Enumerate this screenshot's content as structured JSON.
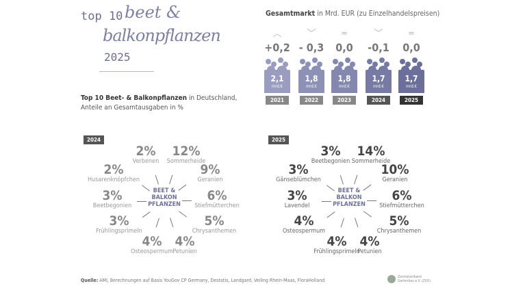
{
  "title": {
    "top": "top 10",
    "line1": "beet &",
    "line2": "balkonpflanzen",
    "year": "2025"
  },
  "subtitle": {
    "bold": "Top 10 Beet- & Balkonpflanzen",
    "rest": " in Deutschland,",
    "line2": "Anteile an Gesamtausgaben in %"
  },
  "market": {
    "title_bold": "Gesamtmarkt",
    "title_rest": " in Mrd. EUR (zu Einzelhandelspreisen)",
    "unit": "mrd.€",
    "columns": [
      {
        "year": "2021",
        "change": "+0,2",
        "trend": "up",
        "value": "2,1",
        "color": "#9a9cc0",
        "year_bg": "#888"
      },
      {
        "year": "2022",
        "change": "- 0,3",
        "trend": "down",
        "value": "1,8",
        "color": "#8e91b6",
        "year_bg": "#888"
      },
      {
        "year": "2023",
        "change": "0,0",
        "trend": "flat",
        "value": "1,8",
        "color": "#8487ae",
        "year_bg": "#888"
      },
      {
        "year": "2024",
        "change": "-0,1",
        "trend": "down",
        "value": "1,7",
        "color": "#777aa3",
        "year_bg": "#555"
      },
      {
        "year": "2025",
        "change": "0,0",
        "trend": "flat",
        "value": "1,7",
        "color": "#6c6f99",
        "year_bg": "#333"
      }
    ]
  },
  "center_label": [
    "BEET &",
    "BALKON",
    "PFLANZEN"
  ],
  "panels": [
    {
      "year": "2024",
      "items": [
        {
          "pct": "2%",
          "name": "Verbenen"
        },
        {
          "pct": "12%",
          "name": "Sommerheide"
        },
        {
          "pct": "9%",
          "name": "Geranien"
        },
        {
          "pct": "6%",
          "name": "Stiefmütterchen"
        },
        {
          "pct": "5%",
          "name": "Chrysanthemen"
        },
        {
          "pct": "4%",
          "name": "Petunien"
        },
        {
          "pct": "4%",
          "name": "Osteospermum"
        },
        {
          "pct": "3%",
          "name": "Frühlingsprimeln"
        },
        {
          "pct": "3%",
          "name": "Beetbegonien"
        },
        {
          "pct": "2%",
          "name": "Husarenknöpfchen"
        }
      ]
    },
    {
      "year": "2025",
      "items": [
        {
          "pct": "3%",
          "name": "Beetbegonien"
        },
        {
          "pct": "14%",
          "name": "Sommerheide"
        },
        {
          "pct": "10%",
          "name": "Geranien"
        },
        {
          "pct": "6%",
          "name": "Stiefmütterchen"
        },
        {
          "pct": "5%",
          "name": "Chrysanthemen"
        },
        {
          "pct": "4%",
          "name": "Petunien"
        },
        {
          "pct": "4%",
          "name": "Frühlingsprimeln"
        },
        {
          "pct": "4%",
          "name": "Osteospermum"
        },
        {
          "pct": "3%",
          "name": "Lavendel"
        },
        {
          "pct": "3%",
          "name": "Gänseblümchen"
        }
      ]
    }
  ],
  "source": {
    "label": "Quelle:",
    "text": " AMI, Berechnungen auf Basis YouGov CP Germany, Destatis, Landgard, Veiling Rhein-Maas, FloraHolland"
  },
  "logo": {
    "line1": "Zentralverband",
    "line2": "Gartenbau e.V. (ZVG)"
  }
}
